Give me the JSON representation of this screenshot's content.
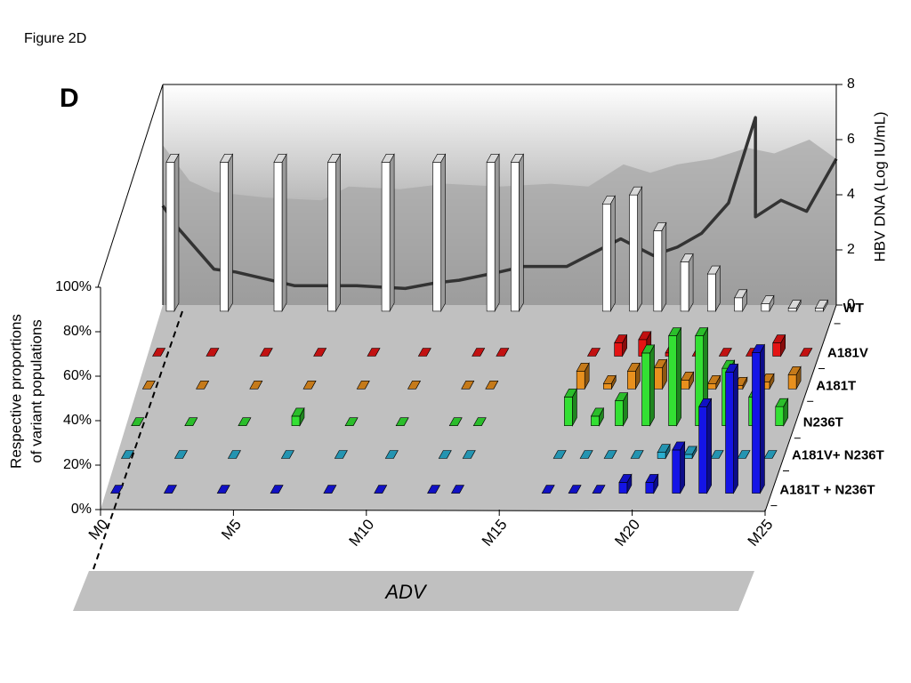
{
  "chart_data": {
    "type": "bar3d",
    "figure_label": "Figure 2D",
    "panel_label": "D",
    "y_label": [
      "Respective proportions",
      "of variant populations"
    ],
    "y2_label": "HBV DNA (Log IU/mL)",
    "band_label": "ADV",
    "xlim": [
      0,
      25
    ],
    "xticks": [
      {
        "value": 0,
        "label": "M0"
      },
      {
        "value": 5,
        "label": "M5"
      },
      {
        "value": 10,
        "label": "M10"
      },
      {
        "value": 15,
        "label": "M15"
      },
      {
        "value": 20,
        "label": "M20"
      },
      {
        "value": 25,
        "label": "M25"
      }
    ],
    "ylim": [
      0,
      100
    ],
    "yticks": [
      {
        "value": 0,
        "label": "0%"
      },
      {
        "value": 20,
        "label": "20%"
      },
      {
        "value": 40,
        "label": "40%"
      },
      {
        "value": 60,
        "label": "60%"
      },
      {
        "value": 80,
        "label": "80%"
      },
      {
        "value": 100,
        "label": "100%"
      }
    ],
    "y2lim": [
      0,
      8
    ],
    "y2ticks": [
      0,
      2,
      4,
      6,
      8
    ],
    "x": [
      0.2,
      2.2,
      4.2,
      6.2,
      8.2,
      10.1,
      12.1,
      13,
      16.4,
      17.4,
      18.3,
      19.3,
      20.3,
      21.3,
      22.3,
      23.3,
      24.3
    ],
    "series": [
      {
        "name": "WT",
        "color": "#ffffff",
        "values": [
          100,
          100,
          100,
          100,
          100,
          100,
          100,
          100,
          72,
          78,
          54,
          33,
          25,
          9,
          5,
          2,
          2
        ]
      },
      {
        "name": "A181V",
        "color": "#e41414",
        "values": [
          0,
          0,
          0,
          0,
          0,
          0,
          0,
          0,
          0,
          8,
          10,
          2,
          0,
          0,
          0,
          8,
          0
        ]
      },
      {
        "name": "A181T",
        "color": "#e8901e",
        "values": [
          0,
          0,
          0,
          0,
          0,
          0,
          0,
          0,
          10,
          3,
          10,
          12,
          5,
          3,
          2,
          4,
          8
        ]
      },
      {
        "name": "N236T",
        "color": "#33e033",
        "values": [
          0,
          0,
          0,
          5,
          0,
          0,
          0,
          0,
          15,
          5,
          13,
          38,
          47,
          47,
          30,
          15,
          10
        ]
      },
      {
        "name": "A181V+ N236T",
        "color": "#2aaed0",
        "values": [
          0,
          0,
          0,
          0,
          0,
          0,
          0,
          0,
          0,
          0,
          0,
          0,
          3,
          2,
          0,
          0,
          0
        ]
      },
      {
        "name": "A181T + N236T",
        "color": "#1414e6",
        "values": [
          0,
          0,
          0,
          0,
          0,
          0,
          0,
          0,
          0,
          0,
          0,
          5,
          5,
          20,
          40,
          56,
          65
        ]
      }
    ],
    "hbv_dna": {
      "axis": "y2",
      "color": "#333333",
      "x": [
        0,
        0.56,
        1.9,
        2.7,
        4.9,
        7.2,
        9.0,
        10.1,
        11,
        12.5,
        13.4,
        15,
        17,
        18.2,
        19.1,
        20,
        21,
        22,
        22,
        22.95,
        23.9,
        25
      ],
      "values": [
        3.6,
        2.8,
        1.3,
        1.2,
        0.7,
        0.7,
        0.6,
        0.8,
        0.9,
        1.2,
        1.4,
        1.4,
        2.4,
        1.8,
        2.1,
        2.6,
        3.7,
        6.8,
        3.2,
        3.8,
        3.4,
        5.3
      ]
    },
    "hbv_range": {
      "axis": "y2",
      "color": "#a8a8a8",
      "x": [
        0,
        1,
        1.9,
        3.8,
        5.9,
        6.9,
        8.8,
        10.5,
        12.5,
        14.4,
        15.8,
        17.1,
        18.1,
        19.1,
        20.4,
        21.7,
        22.7,
        24,
        25
      ],
      "values": [
        5.8,
        4.5,
        4.1,
        3.9,
        3.8,
        4.3,
        4.2,
        4.4,
        4.3,
        4.4,
        4.3,
        5.1,
        4.8,
        5.1,
        5.3,
        5.7,
        5.5,
        6.0,
        5.3
      ]
    }
  }
}
